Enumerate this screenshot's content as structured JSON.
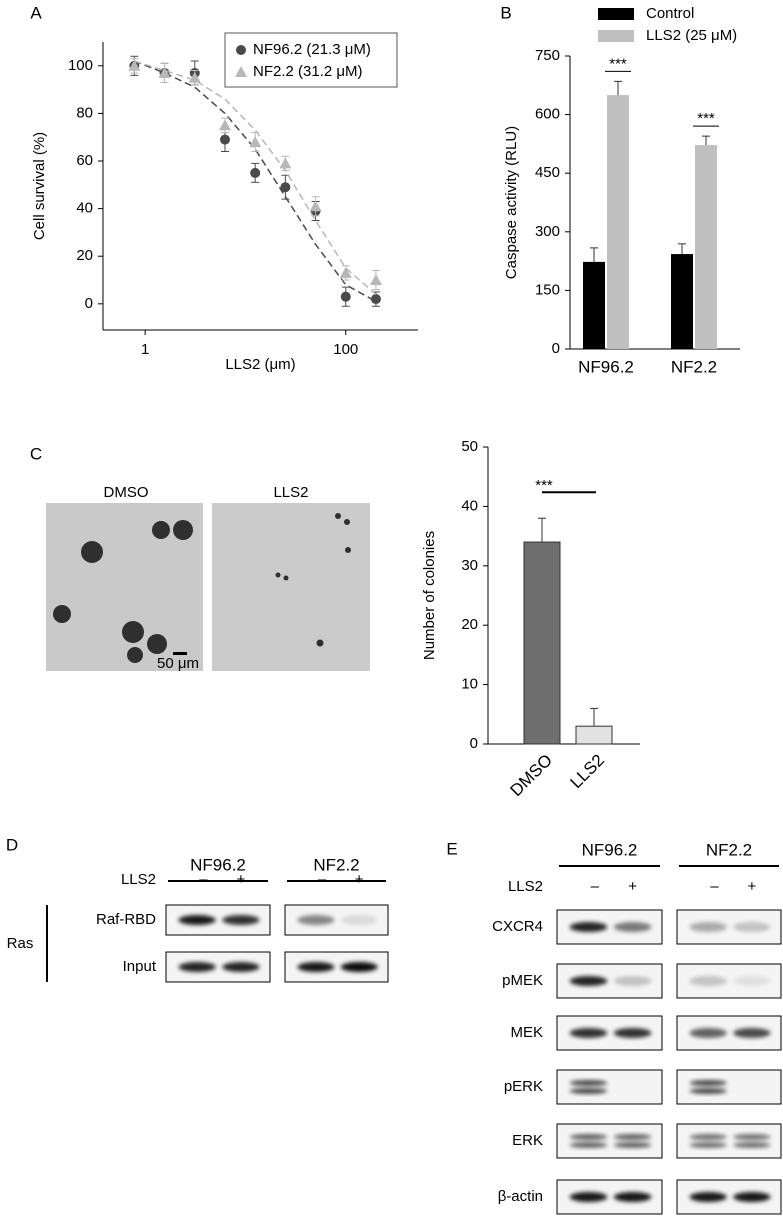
{
  "chart_data": [
    {
      "panel": "A",
      "type": "scatter",
      "log_x": true,
      "xlabel": "LLS2 (μm)",
      "ylabel": "Cell survival (%)",
      "x": [
        0.78,
        1.56,
        3.125,
        6.25,
        12.5,
        25,
        50,
        100,
        200
      ],
      "xlim": [
        0.38,
        525
      ],
      "ylim": [
        -11,
        110
      ],
      "xticks": [
        1,
        100
      ],
      "yticks": [
        0,
        20,
        40,
        60,
        80,
        100
      ],
      "legend": "upper right",
      "series": [
        {
          "name": "NF96.2 (21.3 μM)",
          "color": "#4a4a4a",
          "marker": "circle",
          "values": [
            100,
            97,
            97,
            69,
            55,
            49,
            39,
            3,
            2
          ],
          "errors": [
            4,
            4,
            5,
            5,
            4,
            5,
            4,
            4,
            3
          ],
          "fit": [
            102,
            97,
            91,
            80,
            65,
            45,
            25,
            8,
            1
          ]
        },
        {
          "name": "NF2.2 (31.2 μM)",
          "color": "#b8b8b8",
          "marker": "triangle",
          "values": [
            100,
            97,
            95,
            75,
            68,
            59,
            41,
            13,
            10
          ],
          "errors": [
            3,
            4,
            3,
            3,
            4,
            3,
            4,
            3,
            4
          ],
          "fit": [
            102,
            98,
            94,
            86,
            73,
            56,
            35,
            15,
            4
          ]
        }
      ]
    },
    {
      "panel": "B",
      "type": "bar",
      "ylabel": "Caspase activity (RLU)",
      "categories": [
        "NF96.2",
        "NF2.2"
      ],
      "ylim": [
        0,
        750
      ],
      "yticks": [
        0,
        150,
        300,
        450,
        600,
        750
      ],
      "legend": "top",
      "series": [
        {
          "name": "Control",
          "color": "#000000",
          "values": [
            223,
            243
          ],
          "errors": [
            36,
            26
          ]
        },
        {
          "name": "LLS2 (25 μM)",
          "color": "#c0c0c0",
          "values": [
            650,
            522
          ],
          "errors": [
            35,
            23
          ]
        }
      ],
      "annotations": [
        "***",
        "***"
      ]
    },
    {
      "type": "bar",
      "ylabel": "Number of colonies",
      "categories": [
        "DMSO",
        "LLS2"
      ],
      "values": [
        34,
        3
      ],
      "errors": [
        4,
        3
      ],
      "colors": [
        "#6e6e6e",
        "#e2e2e2"
      ],
      "ylim": [
        0,
        50
      ],
      "yticks": [
        0,
        10,
        20,
        30,
        40,
        50
      ],
      "annotations": [
        "***"
      ]
    }
  ],
  "micrographs": {
    "panel": "C",
    "labels": [
      "DMSO",
      "LLS2"
    ],
    "scale_bar": "50 μm"
  },
  "blot_d": {
    "panel": "D",
    "groups": [
      "NF96.2",
      "NF2.2"
    ],
    "treatment": "LLS2",
    "signs": [
      "–",
      "+"
    ],
    "rows": [
      "Raf-RBD",
      "Input"
    ],
    "side_label": "Ras"
  },
  "blot_e": {
    "panel": "E",
    "groups": [
      "NF96.2",
      "NF2.2"
    ],
    "treatment": "LLS2",
    "signs": [
      "–",
      "+"
    ],
    "rows": [
      "CXCR4",
      "pMEK",
      "MEK",
      "pERK",
      "ERK",
      "β-actin"
    ]
  }
}
